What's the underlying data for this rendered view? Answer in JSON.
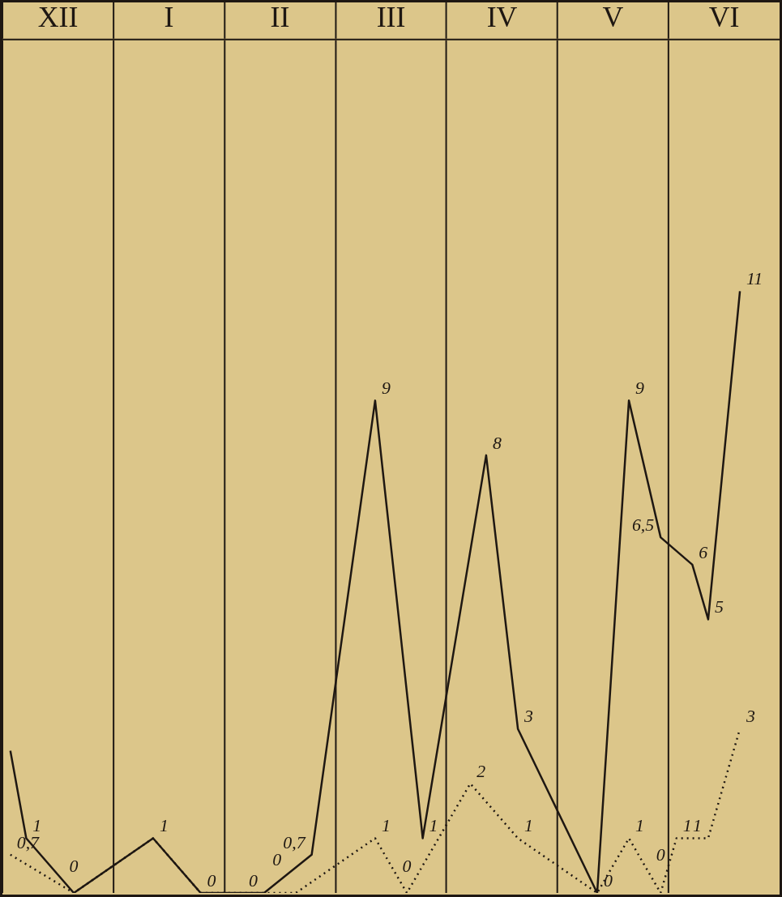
{
  "chart_data": {
    "type": "line",
    "categories": [
      null,
      null,
      null,
      "XII",
      null,
      null,
      null,
      null,
      null,
      null,
      "I",
      null,
      null,
      null,
      null,
      null,
      null,
      "II",
      null,
      null,
      null,
      null,
      null,
      null,
      "III",
      null,
      null,
      null,
      null,
      null,
      null,
      "IV",
      null,
      null,
      null,
      null,
      null,
      null,
      "V",
      null,
      null,
      null,
      null,
      null,
      null,
      "VI",
      null,
      null,
      null
    ],
    "ylim": [
      0,
      15.6
    ],
    "tick_labels": "x",
    "grid": "x",
    "legend": false,
    "marker": "none",
    "series": [
      {
        "color": "#1e1712",
        "line_style": "solid",
        "values": [
          2.6,
          1,
          null,
          null,
          0,
          null,
          null,
          null,
          null,
          1,
          null,
          null,
          0,
          null,
          null,
          null,
          0,
          null,
          null,
          0.7,
          null,
          null,
          null,
          9,
          null,
          null,
          1,
          null,
          null,
          null,
          8,
          null,
          3,
          null,
          null,
          null,
          null,
          0,
          null,
          9,
          null,
          6.5,
          null,
          6,
          5,
          null,
          11,
          null,
          null
        ],
        "value_labels": [
          null,
          "1",
          null,
          null,
          "0",
          null,
          null,
          null,
          null,
          "1",
          null,
          null,
          "0",
          null,
          null,
          null,
          "0",
          null,
          null,
          "0,7",
          null,
          null,
          null,
          "9",
          null,
          null,
          "1",
          null,
          null,
          null,
          "8",
          null,
          "3",
          null,
          null,
          null,
          null,
          "0",
          null,
          "9",
          null,
          "6,5",
          null,
          "6",
          "5",
          null,
          "11",
          null,
          null
        ]
      },
      {
        "color": "#1e1712",
        "line_style": "dotted",
        "values": [
          0.7,
          null,
          null,
          null,
          0,
          null,
          null,
          null,
          null,
          1,
          null,
          null,
          0,
          null,
          null,
          null,
          0,
          null,
          0,
          null,
          null,
          null,
          null,
          1,
          null,
          0,
          null,
          null,
          null,
          2,
          null,
          null,
          1,
          null,
          null,
          null,
          null,
          0,
          null,
          1,
          null,
          0,
          1,
          null,
          1,
          null,
          3,
          null,
          null
        ],
        "value_labels": [
          "0,7",
          null,
          null,
          null,
          null,
          null,
          null,
          null,
          null,
          null,
          null,
          null,
          null,
          null,
          null,
          null,
          null,
          null,
          "0",
          null,
          null,
          null,
          null,
          "1",
          null,
          "0",
          null,
          null,
          null,
          "2",
          null,
          null,
          "1",
          null,
          null,
          null,
          null,
          null,
          null,
          "1",
          null,
          "0",
          "1",
          null,
          "1",
          null,
          "3",
          null,
          null
        ]
      }
    ]
  }
}
